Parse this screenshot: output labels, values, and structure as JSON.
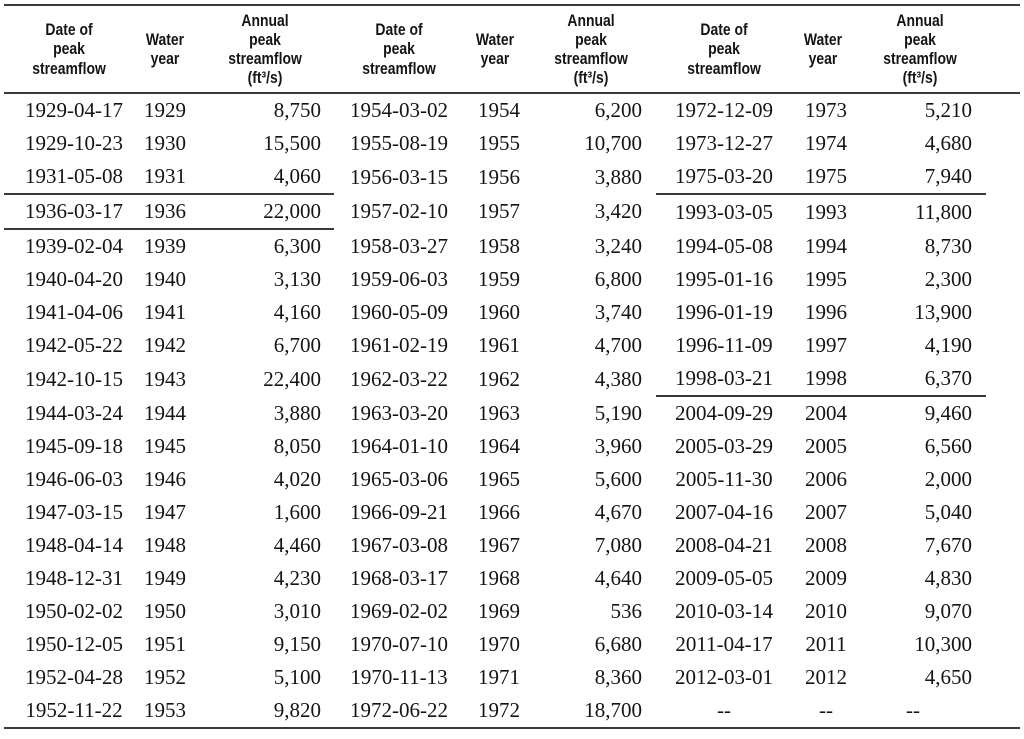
{
  "colors": {
    "background": "#ffffff",
    "text": "#141414",
    "rule_line": "#3a3a3a"
  },
  "table": {
    "column_headers": [
      "Date of\npeak\nstreamflow",
      "Water\nyear",
      "Annual\npeak\nstreamflow\n(ft³/s)"
    ],
    "group_count": 3,
    "rows": [
      [
        "1929-04-17",
        "1929",
        "8,750",
        "1954-03-02",
        "1954",
        "6,200",
        "1972-12-09",
        "1973",
        "5,210"
      ],
      [
        "1929-10-23",
        "1930",
        "15,500",
        "1955-08-19",
        "1955",
        "10,700",
        "1973-12-27",
        "1974",
        "4,680"
      ],
      [
        "1931-05-08",
        "1931",
        "4,060",
        "1956-03-15",
        "1956",
        "3,880",
        "1975-03-20",
        "1975",
        "7,940"
      ],
      [
        "1936-03-17",
        "1936",
        "22,000",
        "1957-02-10",
        "1957",
        "3,420",
        "1993-03-05",
        "1993",
        "11,800"
      ],
      [
        "1939-02-04",
        "1939",
        "6,300",
        "1958-03-27",
        "1958",
        "3,240",
        "1994-05-08",
        "1994",
        "8,730"
      ],
      [
        "1940-04-20",
        "1940",
        "3,130",
        "1959-06-03",
        "1959",
        "6,800",
        "1995-01-16",
        "1995",
        "2,300"
      ],
      [
        "1941-04-06",
        "1941",
        "4,160",
        "1960-05-09",
        "1960",
        "3,740",
        "1996-01-19",
        "1996",
        "13,900"
      ],
      [
        "1942-05-22",
        "1942",
        "6,700",
        "1961-02-19",
        "1961",
        "4,700",
        "1996-11-09",
        "1997",
        "4,190"
      ],
      [
        "1942-10-15",
        "1943",
        "22,400",
        "1962-03-22",
        "1962",
        "4,380",
        "1998-03-21",
        "1998",
        "6,370"
      ],
      [
        "1944-03-24",
        "1944",
        "3,880",
        "1963-03-20",
        "1963",
        "5,190",
        "2004-09-29",
        "2004",
        "9,460"
      ],
      [
        "1945-09-18",
        "1945",
        "8,050",
        "1964-01-10",
        "1964",
        "3,960",
        "2005-03-29",
        "2005",
        "6,560"
      ],
      [
        "1946-06-03",
        "1946",
        "4,020",
        "1965-03-06",
        "1965",
        "5,600",
        "2005-11-30",
        "2006",
        "2,000"
      ],
      [
        "1947-03-15",
        "1947",
        "1,600",
        "1966-09-21",
        "1966",
        "4,670",
        "2007-04-16",
        "2007",
        "5,040"
      ],
      [
        "1948-04-14",
        "1948",
        "4,460",
        "1967-03-08",
        "1967",
        "7,080",
        "2008-04-21",
        "2008",
        "7,670"
      ],
      [
        "1948-12-31",
        "1949",
        "4,230",
        "1968-03-17",
        "1968",
        "4,640",
        "2009-05-05",
        "2009",
        "4,830"
      ],
      [
        "1950-02-02",
        "1950",
        "3,010",
        "1969-02-02",
        "1969",
        "536",
        "2010-03-14",
        "2010",
        "9,070"
      ],
      [
        "1950-12-05",
        "1951",
        "9,150",
        "1970-07-10",
        "1970",
        "6,680",
        "2011-04-17",
        "2011",
        "10,300"
      ],
      [
        "1952-04-28",
        "1952",
        "5,100",
        "1970-11-13",
        "1971",
        "8,360",
        "2012-03-01",
        "2012",
        "4,650"
      ],
      [
        "1952-11-22",
        "1953",
        "9,820",
        "1972-06-22",
        "1972",
        "18,700",
        "--",
        "--",
        "--"
      ]
    ],
    "separators": [
      {
        "group": 0,
        "after_row": 2
      },
      {
        "group": 0,
        "after_row": 3
      },
      {
        "group": 2,
        "after_row": 2
      },
      {
        "group": 2,
        "after_row": 8
      }
    ]
  }
}
